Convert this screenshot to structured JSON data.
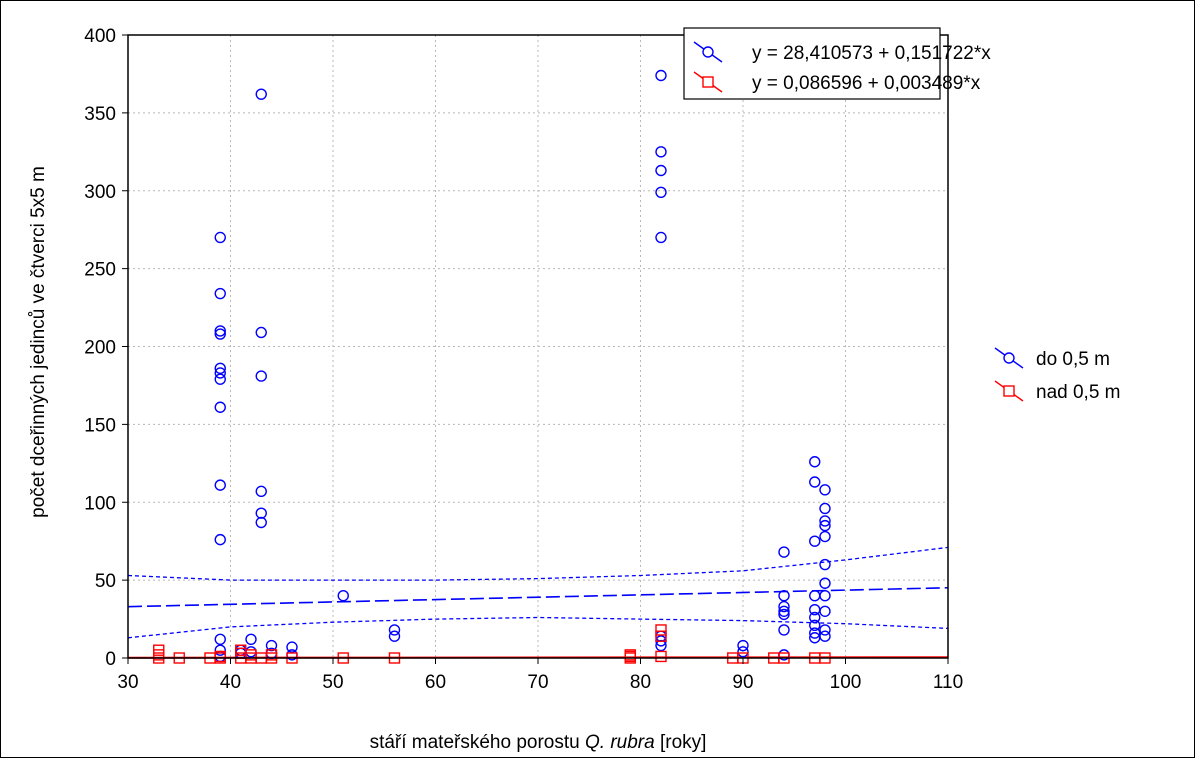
{
  "chart_data": {
    "type": "scatter",
    "xlabel_prefix": "stáří mateřského porostu ",
    "xlabel_italic": "Q. rubra",
    "xlabel_suffix": " [roky]",
    "ylabel": "počet dceřinných jedinců ve čtverci 5x5 m",
    "xlim": [
      30,
      110
    ],
    "ylim": [
      0,
      400
    ],
    "xticks": [
      30,
      40,
      50,
      60,
      70,
      80,
      90,
      100,
      110
    ],
    "yticks": [
      0,
      50,
      100,
      150,
      200,
      250,
      300,
      350,
      400
    ],
    "grid": true,
    "legend": "right",
    "series": [
      {
        "name": "do 0,5 m",
        "color": "#0000ff",
        "marker": "circle",
        "fit_label": "y = 28,410573 + 0,151722*x",
        "intercept": 28.410573,
        "slope": 0.151722,
        "ci_lower": [
          [
            30,
            13
          ],
          [
            40,
            20
          ],
          [
            50,
            23
          ],
          [
            60,
            25
          ],
          [
            70,
            26
          ],
          [
            80,
            25
          ],
          [
            90,
            24
          ],
          [
            100,
            22
          ],
          [
            110,
            19
          ]
        ],
        "ci_upper": [
          [
            30,
            53
          ],
          [
            40,
            50
          ],
          [
            50,
            50
          ],
          [
            60,
            50
          ],
          [
            70,
            51
          ],
          [
            80,
            53
          ],
          [
            90,
            56
          ],
          [
            100,
            63
          ],
          [
            110,
            71
          ]
        ],
        "points": [
          [
            39,
            270
          ],
          [
            39,
            234
          ],
          [
            39,
            210
          ],
          [
            39,
            208
          ],
          [
            39,
            186
          ],
          [
            39,
            183
          ],
          [
            39,
            179
          ],
          [
            39,
            161
          ],
          [
            39,
            111
          ],
          [
            39,
            76
          ],
          [
            39,
            12
          ],
          [
            39,
            5
          ],
          [
            39,
            1
          ],
          [
            41,
            5
          ],
          [
            41,
            3
          ],
          [
            42,
            12
          ],
          [
            42,
            4
          ],
          [
            43,
            362
          ],
          [
            43,
            209
          ],
          [
            43,
            181
          ],
          [
            43,
            107
          ],
          [
            43,
            93
          ],
          [
            43,
            87
          ],
          [
            44,
            8
          ],
          [
            44,
            3
          ],
          [
            46,
            7
          ],
          [
            46,
            2
          ],
          [
            51,
            40
          ],
          [
            56,
            18
          ],
          [
            56,
            14
          ],
          [
            82,
            374
          ],
          [
            82,
            325
          ],
          [
            82,
            313
          ],
          [
            82,
            299
          ],
          [
            82,
            270
          ],
          [
            82,
            14
          ],
          [
            82,
            11
          ],
          [
            82,
            8
          ],
          [
            90,
            8
          ],
          [
            90,
            4
          ],
          [
            94,
            68
          ],
          [
            94,
            40
          ],
          [
            94,
            33
          ],
          [
            94,
            30
          ],
          [
            94,
            28
          ],
          [
            94,
            18
          ],
          [
            94,
            2
          ],
          [
            97,
            126
          ],
          [
            97,
            113
          ],
          [
            97,
            75
          ],
          [
            97,
            40
          ],
          [
            97,
            31
          ],
          [
            97,
            26
          ],
          [
            97,
            21
          ],
          [
            97,
            16
          ],
          [
            97,
            13
          ],
          [
            98,
            108
          ],
          [
            98,
            96
          ],
          [
            98,
            88
          ],
          [
            98,
            85
          ],
          [
            98,
            78
          ],
          [
            98,
            60
          ],
          [
            98,
            48
          ],
          [
            98,
            40
          ],
          [
            98,
            30
          ],
          [
            98,
            18
          ],
          [
            98,
            14
          ]
        ]
      },
      {
        "name": "nad 0,5 m",
        "color": "#ff0000",
        "marker": "square",
        "fit_label": "y = 0,086596 + 0,003489*x",
        "intercept": 0.086596,
        "slope": 0.003489,
        "points": [
          [
            33,
            5
          ],
          [
            33,
            2
          ],
          [
            33,
            0
          ],
          [
            35,
            0
          ],
          [
            38,
            0
          ],
          [
            39,
            0
          ],
          [
            39,
            1
          ],
          [
            41,
            5
          ],
          [
            41,
            3
          ],
          [
            41,
            0
          ],
          [
            42,
            2
          ],
          [
            42,
            0
          ],
          [
            43,
            0
          ],
          [
            44,
            2
          ],
          [
            44,
            0
          ],
          [
            46,
            0
          ],
          [
            51,
            0
          ],
          [
            56,
            0
          ],
          [
            79,
            2
          ],
          [
            79,
            1
          ],
          [
            79,
            0
          ],
          [
            82,
            18
          ],
          [
            82,
            14
          ],
          [
            82,
            1
          ],
          [
            89,
            0
          ],
          [
            90,
            0
          ],
          [
            93,
            0
          ],
          [
            94,
            0
          ],
          [
            97,
            0
          ],
          [
            98,
            0
          ]
        ]
      }
    ]
  }
}
